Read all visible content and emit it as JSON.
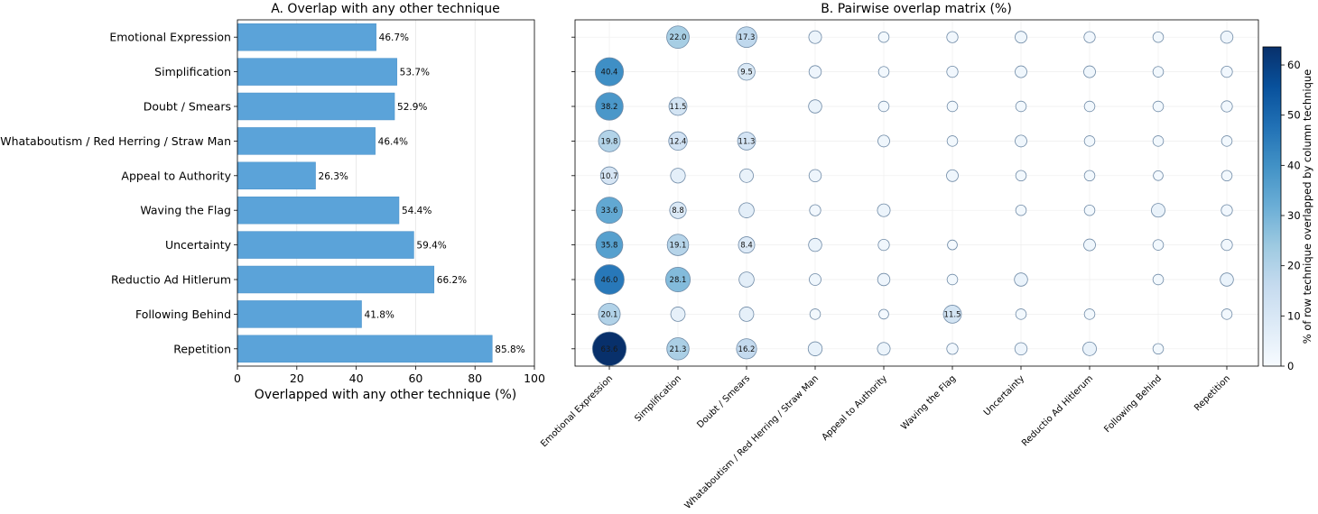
{
  "chart_data": [
    {
      "type": "bar",
      "orientation": "horizontal",
      "title": "A. Overlap with any other technique",
      "xlabel": "Overlapped with any other technique (%)",
      "xlim": [
        0,
        100
      ],
      "xticks": [
        0,
        20,
        40,
        60,
        80,
        100
      ],
      "grid": "x",
      "bar_color": "#5ba3d9",
      "categories": [
        "Emotional Expression",
        "Simplification",
        "Doubt / Smears",
        "Whataboutism / Red Herring / Straw Man",
        "Appeal to Authority",
        "Waving the Flag",
        "Uncertainty",
        "Reductio Ad Hitlerum",
        "Following Behind",
        "Repetition"
      ],
      "values": [
        46.7,
        53.7,
        52.9,
        46.4,
        26.3,
        54.4,
        59.4,
        66.2,
        41.8,
        85.8
      ],
      "labels": [
        "46.7%",
        "53.7%",
        "52.9%",
        "46.4%",
        "26.3%",
        "54.4%",
        "59.4%",
        "66.2%",
        "41.8%",
        "85.8%"
      ]
    },
    {
      "type": "heatmap",
      "title": "B. Pairwise overlap matrix (%)",
      "columns": [
        "Emotional Expression",
        "Simplification",
        "Doubt / Smears",
        "Whataboutism / Red Herring / Straw Man",
        "Appeal to Authority",
        "Waving the Flag",
        "Uncertainty",
        "Reductio Ad Hitlerum",
        "Following Behind",
        "Repetition"
      ],
      "rows": [
        "Emotional Expression",
        "Simplification",
        "Doubt / Smears",
        "Whataboutism / Red Herring / Straw Man",
        "Appeal to Authority",
        "Waving the Flag",
        "Uncertainty",
        "Reductio Ad Hitlerum",
        "Following Behind",
        "Repetition"
      ],
      "values": [
        [
          null,
          22.0,
          17.3,
          3.5,
          1.5,
          2.0,
          2.5,
          2.0,
          1.5,
          3.0
        ],
        [
          40.4,
          null,
          9.5,
          3.0,
          1.5,
          2.0,
          2.5,
          2.5,
          1.5,
          2.0
        ],
        [
          38.2,
          11.5,
          null,
          4.0,
          1.5,
          1.5,
          1.5,
          1.5,
          1.5,
          2.0
        ],
        [
          19.8,
          12.4,
          11.3,
          null,
          2.5,
          1.5,
          2.5,
          1.5,
          1.5,
          1.5
        ],
        [
          10.7,
          6.0,
          4.5,
          3.0,
          null,
          2.5,
          1.5,
          1.5,
          1.0,
          1.5
        ],
        [
          33.6,
          8.8,
          6.5,
          2.0,
          3.5,
          null,
          1.5,
          1.5,
          4.5,
          2.0
        ],
        [
          35.8,
          19.1,
          8.4,
          4.0,
          2.0,
          1.0,
          null,
          2.5,
          1.5,
          2.0
        ],
        [
          46.0,
          28.1,
          6.5,
          2.5,
          3.0,
          1.5,
          4.0,
          null,
          1.5,
          4.0
        ],
        [
          20.1,
          5.5,
          5.5,
          1.5,
          1.0,
          11.5,
          1.5,
          1.5,
          null,
          1.5
        ],
        [
          63.6,
          21.3,
          16.2,
          5.0,
          3.5,
          2.0,
          3.0,
          4.5,
          1.5,
          null
        ]
      ],
      "cell_labels": [
        [
          null,
          "22.0",
          "17.3",
          null,
          null,
          null,
          null,
          null,
          null,
          null
        ],
        [
          "40.4",
          null,
          "9.5",
          null,
          null,
          null,
          null,
          null,
          null,
          null
        ],
        [
          "38.2",
          "11.5",
          null,
          null,
          null,
          null,
          null,
          null,
          null,
          null
        ],
        [
          "19.8",
          "12.4",
          "11.3",
          null,
          null,
          null,
          null,
          null,
          null,
          null
        ],
        [
          "10.7",
          null,
          null,
          null,
          null,
          null,
          null,
          null,
          null,
          null
        ],
        [
          "33.6",
          "8.8",
          null,
          null,
          null,
          null,
          null,
          null,
          null,
          null
        ],
        [
          "35.8",
          "19.1",
          "8.4",
          null,
          null,
          null,
          null,
          null,
          null,
          null
        ],
        [
          "46.0",
          "28.1",
          null,
          null,
          null,
          null,
          null,
          null,
          null,
          null
        ],
        [
          "20.1",
          null,
          null,
          null,
          null,
          "11.5",
          null,
          null,
          null,
          null
        ],
        [
          "63.6",
          "21.3",
          "16.2",
          null,
          null,
          null,
          null,
          null,
          null,
          null
        ]
      ],
      "colorbar": {
        "label": "% of row technique overlapped by column technique",
        "range": [
          0,
          63.6
        ],
        "ticks": [
          0,
          10,
          20,
          30,
          40,
          50,
          60
        ],
        "colormap": "Blues",
        "low_color": "#f7fbff",
        "high_color": "#08306b"
      },
      "grid": true
    }
  ]
}
